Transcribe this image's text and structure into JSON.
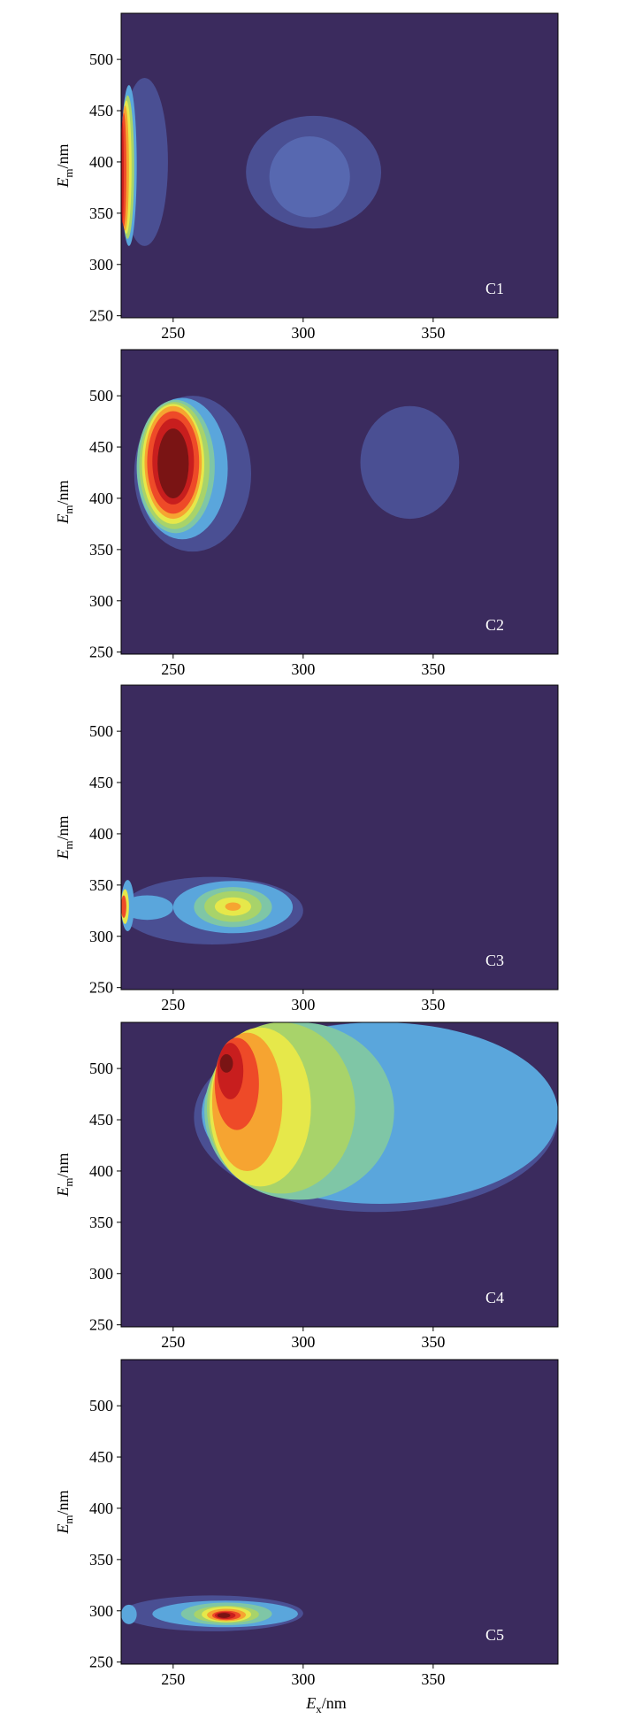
{
  "colors": {
    "background": "#3b2b5e",
    "levels": [
      "#3b2b5e",
      "#4a4f93",
      "#5768b0",
      "#5aa6dc",
      "#7fc6a6",
      "#a8d36a",
      "#e6e84a",
      "#f6a431",
      "#ee4a28",
      "#c81e1e",
      "#7a1414"
    ]
  },
  "chart_data": [
    {
      "type": "heatmap",
      "panel_label": "C1",
      "xlabel": "",
      "ylabel": "Em/nm",
      "ylabel_main": "E",
      "ylabel_sub": "m",
      "ylabel_suffix": "/nm",
      "xlim": [
        230,
        398
      ],
      "ylim": [
        248,
        545
      ],
      "x_ticks": [
        250,
        300,
        350
      ],
      "y_ticks": [
        250,
        300,
        350,
        400,
        450,
        500
      ],
      "peaks": [
        {
          "ex": 230,
          "em": 390,
          "relative_intensity": 1.0
        },
        {
          "ex": 301,
          "em": 388,
          "relative_intensity": 0.15
        }
      ],
      "regions": [
        {
          "level": 1,
          "x": [
            230,
            248
          ],
          "y": [
            318,
            482
          ]
        },
        {
          "level": 1,
          "x": [
            278,
            330
          ],
          "y": [
            335,
            445
          ]
        },
        {
          "level": 2,
          "x": [
            287,
            318
          ],
          "y": [
            346,
            425
          ]
        },
        {
          "level": 3,
          "x": [
            230,
            236
          ],
          "y": [
            318,
            475
          ]
        },
        {
          "level": 5,
          "x": [
            230,
            235
          ],
          "y": [
            325,
            465
          ]
        },
        {
          "level": 6,
          "x": [
            230,
            234
          ],
          "y": [
            330,
            460
          ]
        },
        {
          "level": 7,
          "x": [
            230,
            233
          ],
          "y": [
            333,
            455
          ]
        },
        {
          "level": 8,
          "x": [
            230,
            232
          ],
          "y": [
            337,
            448
          ]
        },
        {
          "level": 9,
          "x": [
            230,
            231
          ],
          "y": [
            340,
            440
          ]
        }
      ]
    },
    {
      "type": "heatmap",
      "panel_label": "C2",
      "xlabel": "",
      "ylabel": "Em/nm",
      "ylabel_main": "E",
      "ylabel_sub": "m",
      "ylabel_suffix": "/nm",
      "xlim": [
        230,
        398
      ],
      "ylim": [
        248,
        545
      ],
      "x_ticks": [
        250,
        300,
        350
      ],
      "y_ticks": [
        250,
        300,
        350,
        400,
        450,
        500
      ],
      "peaks": [
        {
          "ex": 250,
          "em": 432,
          "relative_intensity": 1.0
        },
        {
          "ex": 342,
          "em": 432,
          "relative_intensity": 0.15
        }
      ],
      "regions": [
        {
          "level": 1,
          "x": [
            235,
            280
          ],
          "y": [
            348,
            500
          ]
        },
        {
          "level": 1,
          "x": [
            322,
            360
          ],
          "y": [
            380,
            490
          ]
        },
        {
          "level": 3,
          "x": [
            236,
            271
          ],
          "y": [
            360,
            498
          ]
        },
        {
          "level": 4,
          "x": [
            236,
            266
          ],
          "y": [
            366,
            496
          ]
        },
        {
          "level": 5,
          "x": [
            237,
            264
          ],
          "y": [
            370,
            494
          ]
        },
        {
          "level": 6,
          "x": [
            238,
            262
          ],
          "y": [
            375,
            492
          ]
        },
        {
          "level": 7,
          "x": [
            239,
            261
          ],
          "y": [
            380,
            490
          ]
        },
        {
          "level": 8,
          "x": [
            240,
            260
          ],
          "y": [
            385,
            485
          ]
        },
        {
          "level": 9,
          "x": [
            242,
            258
          ],
          "y": [
            394,
            478
          ]
        },
        {
          "level": 10,
          "x": [
            244,
            256
          ],
          "y": [
            400,
            468
          ]
        }
      ]
    },
    {
      "type": "heatmap",
      "panel_label": "C3",
      "xlabel": "",
      "ylabel": "Em/nm",
      "ylabel_main": "E",
      "ylabel_sub": "m",
      "ylabel_suffix": "/nm",
      "xlim": [
        230,
        398
      ],
      "ylim": [
        248,
        545
      ],
      "x_ticks": [
        250,
        300,
        350
      ],
      "y_ticks": [
        250,
        300,
        350,
        400,
        450,
        500
      ],
      "peaks": [
        {
          "ex": 230,
          "em": 328,
          "relative_intensity": 1.0
        },
        {
          "ex": 272,
          "em": 328,
          "relative_intensity": 0.55
        }
      ],
      "regions": [
        {
          "level": 1,
          "x": [
            230,
            300
          ],
          "y": [
            292,
            358
          ]
        },
        {
          "level": 3,
          "x": [
            250,
            296
          ],
          "y": [
            303,
            354
          ]
        },
        {
          "level": 3,
          "x": [
            230,
            250
          ],
          "y": [
            316,
            340
          ]
        },
        {
          "level": 4,
          "x": [
            258,
            288
          ],
          "y": [
            309,
            348
          ]
        },
        {
          "level": 5,
          "x": [
            262,
            284
          ],
          "y": [
            314,
            344
          ]
        },
        {
          "level": 6,
          "x": [
            266,
            280
          ],
          "y": [
            320,
            338
          ]
        },
        {
          "level": 7,
          "x": [
            270,
            276
          ],
          "y": [
            325,
            333
          ]
        },
        {
          "level": 3,
          "x": [
            230,
            235
          ],
          "y": [
            305,
            355
          ]
        },
        {
          "level": 6,
          "x": [
            230,
            233
          ],
          "y": [
            312,
            346
          ]
        },
        {
          "level": 8,
          "x": [
            230,
            232
          ],
          "y": [
            318,
            340
          ]
        }
      ]
    },
    {
      "type": "heatmap",
      "panel_label": "C4",
      "xlabel": "",
      "ylabel": "Em/nm",
      "ylabel_main": "E",
      "ylabel_sub": "m",
      "ylabel_suffix": "/nm",
      "xlim": [
        230,
        398
      ],
      "ylim": [
        248,
        545
      ],
      "x_ticks": [
        250,
        300,
        350
      ],
      "y_ticks": [
        250,
        300,
        350,
        400,
        450,
        500
      ],
      "peaks": [
        {
          "ex": 270,
          "em": 505,
          "relative_intensity": 1.0
        }
      ],
      "regions": [
        {
          "level": 1,
          "x": [
            258,
            398
          ],
          "y": [
            360,
            545
          ]
        },
        {
          "level": 3,
          "x": [
            261,
            398
          ],
          "y": [
            368,
            545
          ]
        },
        {
          "level": 4,
          "x": [
            262,
            335
          ],
          "y": [
            372,
            545
          ]
        },
        {
          "level": 5,
          "x": [
            263,
            320
          ],
          "y": [
            378,
            545
          ]
        },
        {
          "level": 6,
          "x": [
            264,
            303
          ],
          "y": [
            385,
            540
          ]
        },
        {
          "level": 7,
          "x": [
            265,
            292
          ],
          "y": [
            400,
            535
          ]
        },
        {
          "level": 8,
          "x": [
            266,
            283
          ],
          "y": [
            440,
            530
          ]
        },
        {
          "level": 9,
          "x": [
            267,
            277
          ],
          "y": [
            470,
            525
          ]
        },
        {
          "level": 10,
          "x": [
            268,
            273
          ],
          "y": [
            496,
            514
          ]
        }
      ]
    },
    {
      "type": "heatmap",
      "panel_label": "C5",
      "xlabel": "Ex/nm",
      "xlabel_main": "E",
      "xlabel_sub": "x",
      "xlabel_suffix": "/nm",
      "ylabel": "Em/nm",
      "ylabel_main": "E",
      "ylabel_sub": "m",
      "ylabel_suffix": "/nm",
      "xlim": [
        230,
        398
      ],
      "ylim": [
        248,
        545
      ],
      "x_ticks": [
        250,
        300,
        350
      ],
      "y_ticks": [
        250,
        300,
        350,
        400,
        450,
        500
      ],
      "peaks": [
        {
          "ex": 270,
          "em": 296,
          "relative_intensity": 1.0
        }
      ],
      "regions": [
        {
          "level": 1,
          "x": [
            230,
            300
          ],
          "y": [
            280,
            315
          ]
        },
        {
          "level": 3,
          "x": [
            242,
            298
          ],
          "y": [
            284,
            310
          ]
        },
        {
          "level": 4,
          "x": [
            253,
            288
          ],
          "y": [
            286,
            308
          ]
        },
        {
          "level": 5,
          "x": [
            258,
            283
          ],
          "y": [
            288,
            305
          ]
        },
        {
          "level": 6,
          "x": [
            261,
            280
          ],
          "y": [
            289,
            304
          ]
        },
        {
          "level": 7,
          "x": [
            263,
            278
          ],
          "y": [
            290,
            302
          ]
        },
        {
          "level": 8,
          "x": [
            265,
            276
          ],
          "y": [
            291,
            300
          ]
        },
        {
          "level": 9,
          "x": [
            266,
            274
          ],
          "y": [
            292,
            299
          ]
        },
        {
          "level": 10,
          "x": [
            267,
            272
          ],
          "y": [
            293,
            298
          ]
        },
        {
          "level": 3,
          "x": [
            230,
            236
          ],
          "y": [
            287,
            306
          ]
        }
      ]
    }
  ]
}
